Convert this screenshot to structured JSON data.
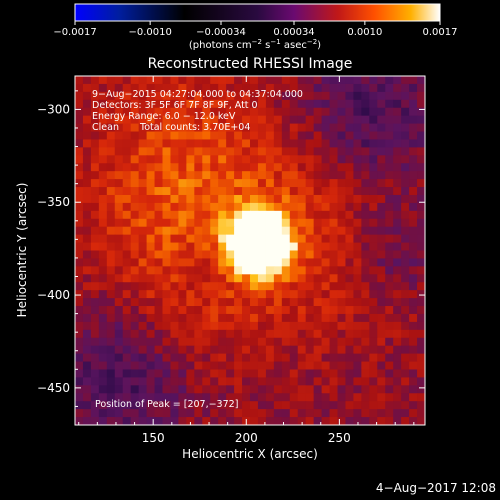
{
  "colorbar": {
    "ticks": [
      "−0.0017",
      "−0.0010",
      "−0.00034",
      "0.00034",
      "0.0010",
      "0.0017"
    ],
    "tick_values": [
      -0.0017,
      -0.001,
      -0.00034,
      0.00034,
      0.001,
      0.0017
    ],
    "range": [
      -0.0017,
      0.0017
    ],
    "units_prefix": "(photons cm",
    "units_exp1": "−2",
    "units_mid": " s",
    "units_exp2": "−1",
    "units_mid2": " asec",
    "units_exp3": "−2",
    "units_suffix": ")"
  },
  "annotations": {
    "time": "9−Aug−2015 04:27:04.000 to 04:37:04.000",
    "detectors": "Detectors: 3F 5F 6F 7F 8F 9F, Att 0",
    "energy": "Energy Range: 6.0 − 12.0 keV",
    "clean": "Clean",
    "counts": "Total counts: 3.70E+04",
    "peak": "Position of Peak = [207,−372]"
  },
  "footer": {
    "timestamp": "4−Aug−2017 12:08"
  },
  "chart_data": {
    "type": "heatmap",
    "title": "Reconstructed RHESSI Image",
    "xlabel": "Heliocentric X (arcsec)",
    "ylabel": "Heliocentric Y (arcsec)",
    "xlim": [
      108,
      296
    ],
    "ylim": [
      -470,
      -282
    ],
    "x_ticks": [
      150,
      200,
      250
    ],
    "x_tick_labels": [
      "150",
      "200",
      "250"
    ],
    "y_ticks": [
      -300,
      -350,
      -400,
      -450
    ],
    "y_tick_labels": [
      "−300",
      "−350",
      "−400",
      "−450"
    ],
    "peak": {
      "x": 207,
      "y": -372
    },
    "colormap": [
      "#0a00ff",
      "#000000",
      "#000000",
      "#3a0a55",
      "#7a0a60",
      "#b81010",
      "#ff4a00",
      "#ffb000",
      "#ffffff"
    ]
  }
}
